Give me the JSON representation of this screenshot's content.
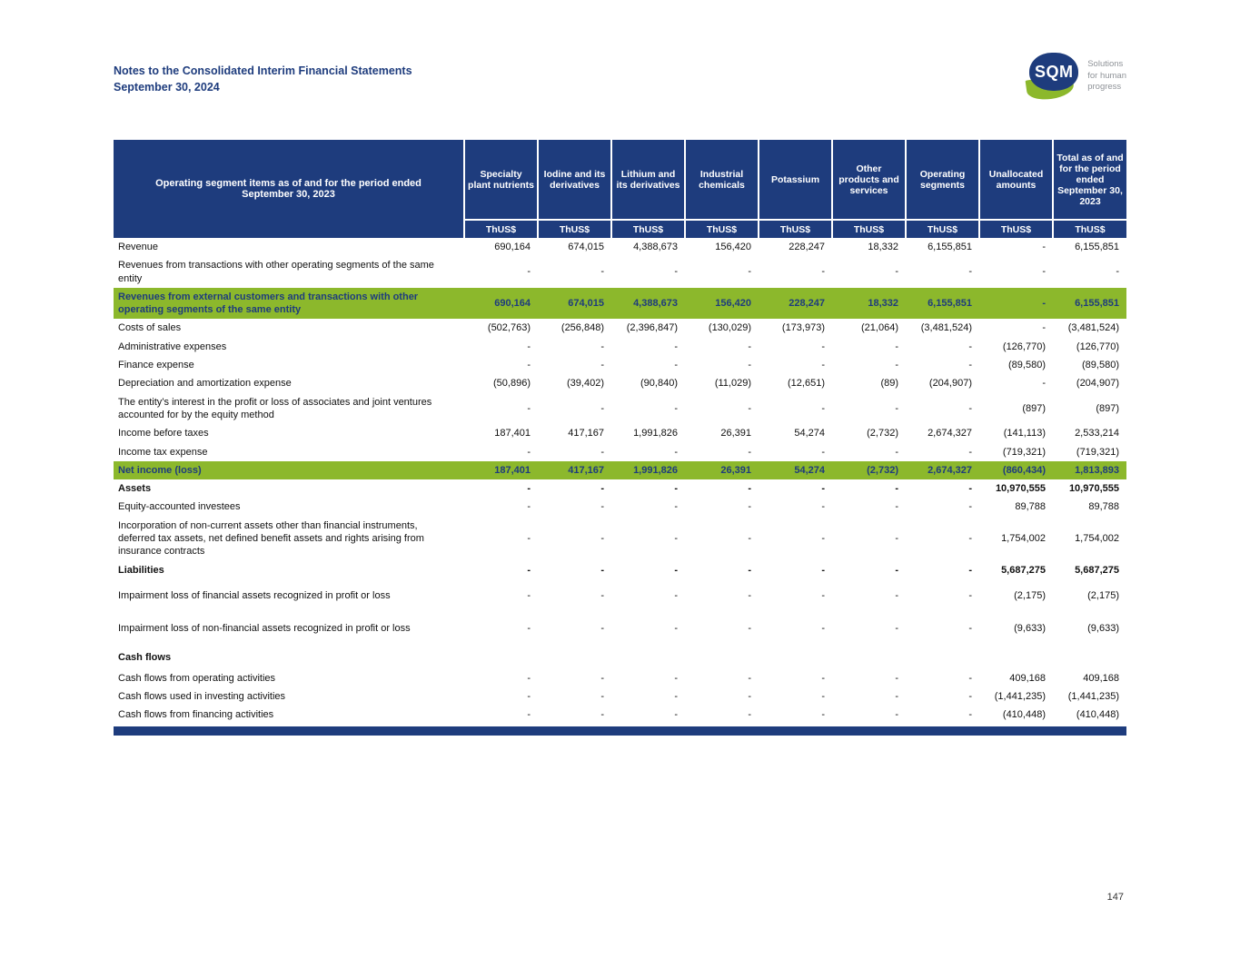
{
  "header": {
    "title": "Notes to the Consolidated Interim Financial Statements",
    "date": "September 30, 2024"
  },
  "logo": {
    "text": "SQM",
    "tagline": [
      "Solutions",
      "for human",
      "progress"
    ]
  },
  "colors": {
    "navy": "#1e3c7d",
    "green": "#8cb82c"
  },
  "table": {
    "corner_label": "Operating segment items as of and for the period ended September 30, 2023",
    "unit_label": "ThUS$",
    "columns": [
      "Specialty plant nutrients",
      "Iodine and its derivatives",
      "Lithium and its derivatives",
      "Industrial chemicals",
      "Potassium",
      "Other products and services",
      "Operating segments",
      "Unallocated amounts",
      "Total as of and for the period ended September 30, 2023"
    ],
    "rows": [
      {
        "label": "Revenue",
        "style": "normal",
        "values": [
          "690,164",
          "674,015",
          "4,388,673",
          "156,420",
          "228,247",
          "18,332",
          "6,155,851",
          "-",
          "6,155,851"
        ]
      },
      {
        "label": "Revenues from transactions with other operating segments of the same entity",
        "style": "normal",
        "values": [
          "-",
          "-",
          "-",
          "-",
          "-",
          "-",
          "-",
          "-",
          "-"
        ]
      },
      {
        "label": "Revenues from external customers and transactions with other operating segments of the same entity",
        "style": "highlight",
        "values": [
          "690,164",
          "674,015",
          "4,388,673",
          "156,420",
          "228,247",
          "18,332",
          "6,155,851",
          "-",
          "6,155,851"
        ]
      },
      {
        "label": "Costs of sales",
        "style": "normal",
        "values": [
          "(502,763)",
          "(256,848)",
          "(2,396,847)",
          "(130,029)",
          "(173,973)",
          "(21,064)",
          "(3,481,524)",
          "-",
          "(3,481,524)"
        ]
      },
      {
        "label": "Administrative expenses",
        "style": "normal",
        "values": [
          "-",
          "-",
          "-",
          "-",
          "-",
          "-",
          "-",
          "(126,770)",
          "(126,770)"
        ]
      },
      {
        "label": "Finance expense",
        "style": "normal",
        "values": [
          "-",
          "-",
          "-",
          "-",
          "-",
          "-",
          "-",
          "(89,580)",
          "(89,580)"
        ]
      },
      {
        "label": "Depreciation and amortization expense",
        "style": "normal",
        "values": [
          "(50,896)",
          "(39,402)",
          "(90,840)",
          "(11,029)",
          "(12,651)",
          "(89)",
          "(204,907)",
          "-",
          "(204,907)"
        ]
      },
      {
        "label": "The entity’s interest in the profit or loss of associates and joint ventures accounted for by the equity method",
        "style": "normal",
        "values": [
          "-",
          "-",
          "-",
          "-",
          "-",
          "-",
          "-",
          "(897)",
          "(897)"
        ]
      },
      {
        "label": "Income before taxes",
        "style": "normal",
        "values": [
          "187,401",
          "417,167",
          "1,991,826",
          "26,391",
          "54,274",
          "(2,732)",
          "2,674,327",
          "(141,113)",
          "2,533,214"
        ]
      },
      {
        "label": "Income tax expense",
        "style": "normal",
        "values": [
          "-",
          "-",
          "-",
          "-",
          "-",
          "-",
          "-",
          "(719,321)",
          "(719,321)"
        ]
      },
      {
        "label": "Net income (loss)",
        "style": "highlight",
        "values": [
          "187,401",
          "417,167",
          "1,991,826",
          "26,391",
          "54,274",
          "(2,732)",
          "2,674,327",
          "(860,434)",
          "1,813,893"
        ]
      },
      {
        "label": "Assets",
        "style": "bold",
        "values": [
          "-",
          "-",
          "-",
          "-",
          "-",
          "-",
          "-",
          "10,970,555",
          "10,970,555"
        ]
      },
      {
        "label": "Equity-accounted investees",
        "style": "normal",
        "values": [
          "-",
          "-",
          "-",
          "-",
          "-",
          "-",
          "-",
          "89,788",
          "89,788"
        ]
      },
      {
        "label": "Incorporation of non-current assets other than financial instruments, deferred tax assets, net defined benefit assets and rights arising from insurance contracts",
        "style": "normal",
        "values": [
          "-",
          "-",
          "-",
          "-",
          "-",
          "-",
          "-",
          "1,754,002",
          "1,754,002"
        ]
      },
      {
        "label": "Liabilities",
        "style": "bold",
        "values": [
          "-",
          "-",
          "-",
          "-",
          "-",
          "-",
          "-",
          "5,687,275",
          "5,687,275"
        ]
      },
      {
        "label": "Impairment loss of financial assets recognized in profit or loss",
        "style": "tall",
        "values": [
          "-",
          "-",
          "-",
          "-",
          "-",
          "-",
          "-",
          "(2,175)",
          "(2,175)"
        ]
      },
      {
        "label": "Impairment loss of non-financial assets recognized in profit or loss",
        "style": "tall",
        "values": [
          "-",
          "-",
          "-",
          "-",
          "-",
          "-",
          "-",
          "(9,633)",
          "(9,633)"
        ]
      },
      {
        "label": "Cash flows",
        "style": "section",
        "values": []
      },
      {
        "label": "Cash flows from operating activities",
        "style": "normal",
        "values": [
          "-",
          "-",
          "-",
          "-",
          "-",
          "-",
          "-",
          "409,168",
          "409,168"
        ]
      },
      {
        "label": "Cash flows used in investing activities",
        "style": "normal",
        "values": [
          "-",
          "-",
          "-",
          "-",
          "-",
          "-",
          "-",
          "(1,441,235)",
          "(1,441,235)"
        ]
      },
      {
        "label": "Cash flows from financing activities",
        "style": "normal",
        "values": [
          "-",
          "-",
          "-",
          "-",
          "-",
          "-",
          "-",
          "(410,448)",
          "(410,448)"
        ]
      }
    ]
  },
  "footer": {
    "page_number": "147"
  }
}
